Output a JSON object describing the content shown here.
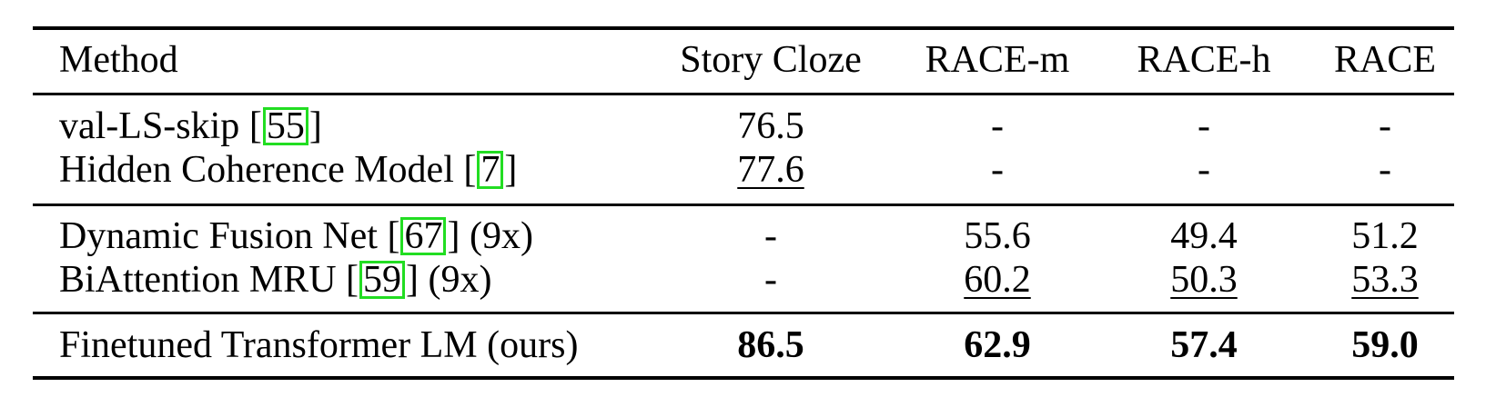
{
  "table": {
    "headers": [
      "Method",
      "Story Cloze",
      "RACE-m",
      "RACE-h",
      "RACE"
    ],
    "rows": [
      {
        "method": "val-LS-skip",
        "cite": "55",
        "suffix": "",
        "values": [
          "76.5",
          "-",
          "-",
          "-"
        ]
      },
      {
        "method": "Hidden Coherence Model",
        "cite": "7",
        "suffix": "",
        "values": [
          "77.6",
          "-",
          "-",
          "-"
        ]
      },
      {
        "method": "Dynamic Fusion Net",
        "cite": "67",
        "suffix": "(9x)",
        "values": [
          "-",
          "55.6",
          "49.4",
          "51.2"
        ]
      },
      {
        "method": "BiAttention MRU",
        "cite": "59",
        "suffix": "(9x)",
        "values": [
          "-",
          "60.2",
          "50.3",
          "53.3"
        ]
      },
      {
        "method": "Finetuned Transformer LM (ours)",
        "cite": "",
        "suffix": "",
        "values": [
          "86.5",
          "62.9",
          "57.4",
          "59.0"
        ]
      }
    ]
  },
  "colors": {
    "citation_box": "#22dd22"
  }
}
